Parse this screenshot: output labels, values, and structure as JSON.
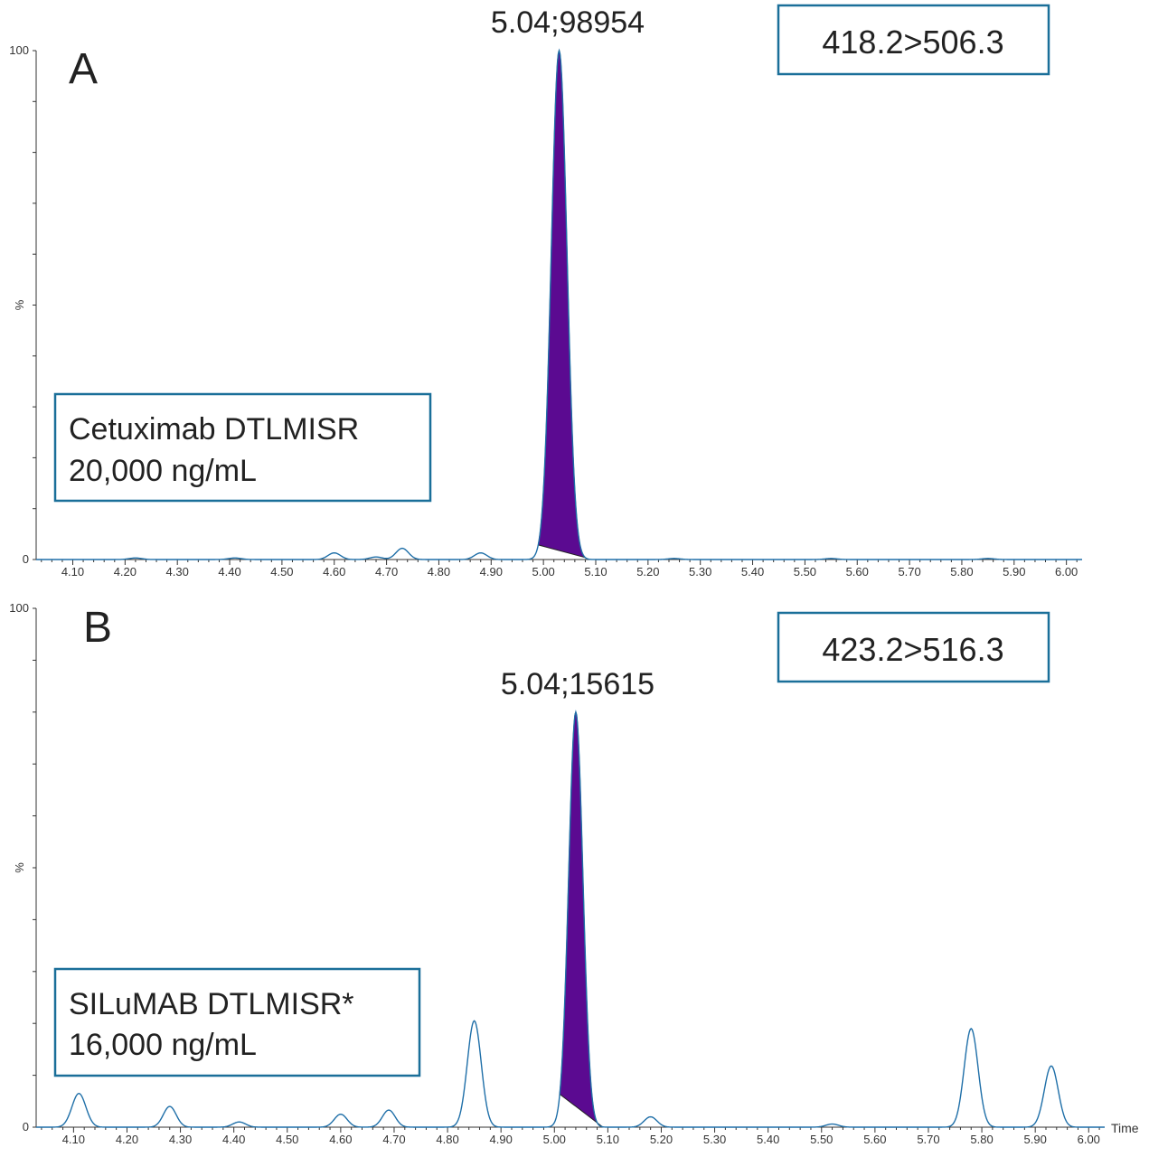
{
  "chart_data": [
    {
      "type": "line",
      "panel_label": "A",
      "transition": "418.2>506.3",
      "analyte": "Cetuximab DTLMISR",
      "concentration": "20,000 ng/mL",
      "peak_label": "5.04;98954",
      "ylabel": "%",
      "xlabel": "",
      "ylim": [
        0,
        100
      ],
      "xlim": [
        4.03,
        6.03
      ],
      "y_ticks": [
        "0",
        "100"
      ],
      "x_ticks": [
        "4.10",
        "4.20",
        "4.30",
        "4.40",
        "4.50",
        "4.60",
        "4.70",
        "4.80",
        "4.90",
        "5.00",
        "5.10",
        "5.20",
        "5.30",
        "5.40",
        "5.50",
        "5.60",
        "5.70",
        "5.80",
        "5.90",
        "6.00"
      ],
      "line_color": "#1f6fa8",
      "fill_color": "#5b0a91",
      "shaded_peak": {
        "center": 5.03,
        "start": 4.99,
        "end": 5.08,
        "height": 100
      },
      "background_peaks": [
        {
          "center": 4.22,
          "height": 0.3
        },
        {
          "center": 4.41,
          "height": 0.3
        },
        {
          "center": 4.6,
          "height": 1.3
        },
        {
          "center": 4.68,
          "height": 0.5
        },
        {
          "center": 4.73,
          "height": 2.2
        },
        {
          "center": 4.88,
          "height": 1.3
        },
        {
          "center": 5.25,
          "height": 0.2
        },
        {
          "center": 5.55,
          "height": 0.2
        },
        {
          "center": 5.85,
          "height": 0.2
        }
      ]
    },
    {
      "type": "line",
      "panel_label": "B",
      "transition": "423.2>516.3",
      "analyte": "SILuMAB DTLMISR*",
      "concentration": "16,000 ng/mL",
      "peak_label": "5.04;15615",
      "ylabel": "%",
      "xlabel": "Time",
      "ylim": [
        0,
        100
      ],
      "xlim": [
        4.03,
        6.03
      ],
      "y_ticks": [
        "0",
        "100"
      ],
      "x_ticks": [
        "4.10",
        "4.20",
        "4.30",
        "4.40",
        "4.50",
        "4.60",
        "4.70",
        "4.80",
        "4.90",
        "5.00",
        "5.10",
        "5.20",
        "5.30",
        "5.40",
        "5.50",
        "5.60",
        "5.70",
        "5.80",
        "5.90",
        "6.00"
      ],
      "line_color": "#1f6fa8",
      "fill_color": "#5b0a91",
      "shaded_peak": {
        "center": 5.04,
        "start": 5.01,
        "end": 5.09,
        "height": 80
      },
      "background_peaks": [
        {
          "center": 4.11,
          "height": 6.5
        },
        {
          "center": 4.28,
          "height": 4
        },
        {
          "center": 4.41,
          "height": 1
        },
        {
          "center": 4.6,
          "height": 2.5
        },
        {
          "center": 4.69,
          "height": 3.3
        },
        {
          "center": 4.85,
          "height": 20.5
        },
        {
          "center": 5.18,
          "height": 2
        },
        {
          "center": 5.52,
          "height": 0.6
        },
        {
          "center": 5.78,
          "height": 19
        },
        {
          "center": 5.93,
          "height": 11.8
        }
      ]
    }
  ]
}
